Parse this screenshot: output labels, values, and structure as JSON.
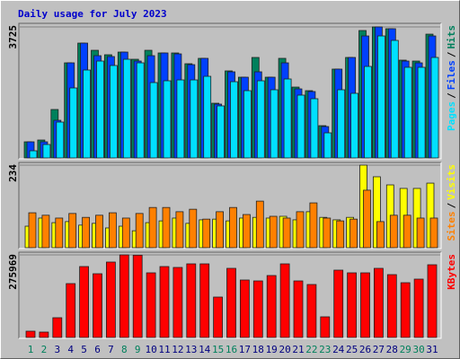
{
  "chart_data": [
    {
      "type": "bar",
      "title": "Daily usage for July 2023",
      "ylim": [
        0,
        3725
      ],
      "yticks": [
        3725
      ],
      "grid": true,
      "legend_separator": "/",
      "series": [
        {
          "name": "Hits",
          "color": "#00805c",
          "values": [
            459,
            510,
            1378,
            2704,
            3265,
            3061,
            2934,
            3010,
            2806,
            3061,
            2985,
            2985,
            2679,
            2832,
            1556,
            2475,
            2296,
            2857,
            2296,
            2832,
            2015,
            1913,
            918,
            2526,
            2857,
            3623,
            3725,
            3674,
            2781,
            2755,
            3520
          ]
        },
        {
          "name": "Files",
          "color": "#0040ff",
          "values": [
            459,
            459,
            1071,
            2704,
            3265,
            2908,
            2883,
            3010,
            2755,
            2908,
            2985,
            2959,
            2653,
            2832,
            1531,
            2449,
            2296,
            2449,
            2296,
            2704,
            1964,
            1888,
            893,
            2526,
            2857,
            3469,
            3725,
            3674,
            2755,
            2704,
            3469
          ]
        },
        {
          "name": "Pages",
          "color": "#00e0ff",
          "values": [
            204,
            383,
            1020,
            1990,
            2500,
            2755,
            2628,
            2806,
            2704,
            2143,
            2194,
            2219,
            2219,
            2321,
            1480,
            2168,
            1913,
            2194,
            1939,
            2245,
            1786,
            1684,
            714,
            1939,
            1837,
            2602,
            3469,
            3342,
            2577,
            2577,
            2857
          ]
        }
      ]
    },
    {
      "type": "bar",
      "ylim": [
        0,
        234
      ],
      "yticks": [
        234
      ],
      "grid": true,
      "legend_separator": "/",
      "series": [
        {
          "name": "Visits",
          "color": "#ffff00",
          "values": [
            61,
            84,
            71,
            74,
            64,
            69,
            56,
            61,
            48,
            71,
            76,
            84,
            69,
            79,
            81,
            76,
            84,
            86,
            84,
            89,
            79,
            102,
            86,
            79,
            86,
            234,
            201,
            178,
            168,
            168,
            183
          ]
        },
        {
          "name": "Sites",
          "color": "#ff8000",
          "values": [
            99,
            92,
            84,
            97,
            86,
            92,
            99,
            84,
            97,
            114,
            114,
            102,
            109,
            81,
            102,
            114,
            94,
            132,
            89,
            84,
            102,
            127,
            84,
            76,
            81,
            163,
            74,
            92,
            92,
            84,
            84
          ]
        }
      ]
    },
    {
      "type": "bar",
      "ylim": [
        0,
        275969
      ],
      "yticks": [
        275969
      ],
      "grid": true,
      "categories": [
        "1",
        "2",
        "3",
        "4",
        "5",
        "6",
        "7",
        "8",
        "9",
        "10",
        "11",
        "12",
        "13",
        "14",
        "15",
        "16",
        "17",
        "18",
        "19",
        "20",
        "21",
        "22",
        "23",
        "24",
        "25",
        "26",
        "27",
        "28",
        "29",
        "30",
        "31"
      ],
      "category_colors": [
        "#00805c",
        "#00805c",
        "#000080",
        "#000080",
        "#000080",
        "#000080",
        "#000080",
        "#00805c",
        "#00805c",
        "#000080",
        "#000080",
        "#000080",
        "#000080",
        "#000080",
        "#00805c",
        "#00805c",
        "#000080",
        "#000080",
        "#000080",
        "#000080",
        "#000080",
        "#00805c",
        "#00805c",
        "#000080",
        "#000080",
        "#000080",
        "#000080",
        "#000080",
        "#00805c",
        "#00805c",
        "#000080"
      ],
      "series": [
        {
          "name": "KBytes",
          "color": "#ff0000",
          "values": [
            21000,
            18000,
            66000,
            180000,
            237000,
            213000,
            252000,
            275969,
            275000,
            216000,
            237000,
            234000,
            246000,
            246000,
            135000,
            231000,
            192000,
            189000,
            207000,
            246000,
            189000,
            177000,
            69000,
            225000,
            216000,
            216000,
            231000,
            210000,
            183000,
            195000,
            243000
          ]
        }
      ]
    }
  ]
}
